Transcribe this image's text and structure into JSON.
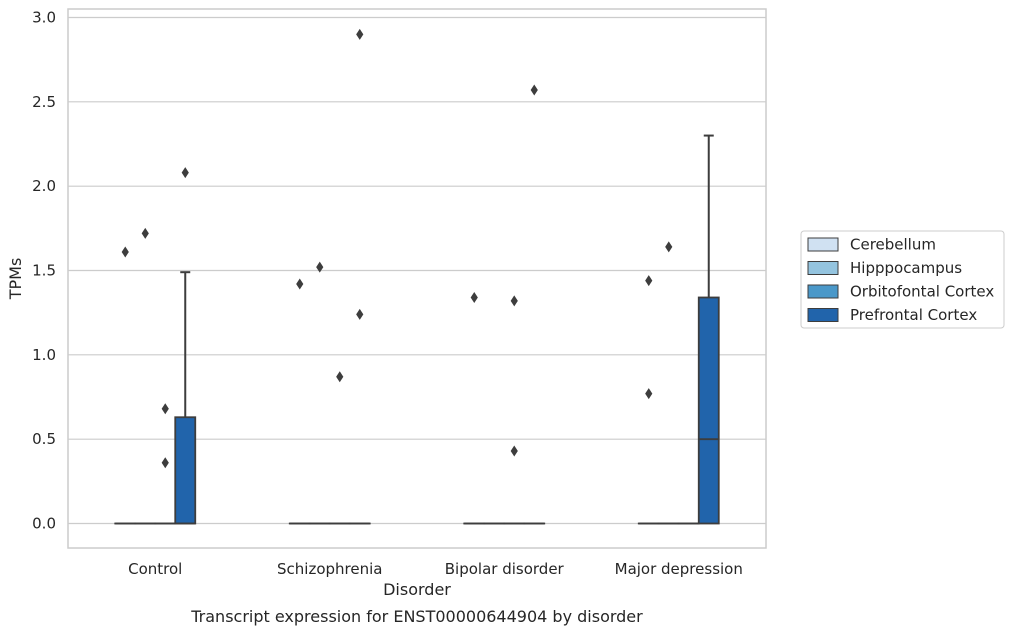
{
  "chart_data": {
    "type": "box",
    "title": "",
    "caption": "Transcript expression for ENST00000644904 by disorder",
    "xlabel": "Disorder",
    "ylabel": "TPMs",
    "ylim": [
      -0.14,
      3.05
    ],
    "yticks": [
      0.0,
      0.5,
      1.0,
      1.5,
      2.0,
      2.5,
      3.0
    ],
    "ytick_labels": [
      "0.0",
      "0.5",
      "1.0",
      "1.5",
      "2.0",
      "2.5",
      "3.0"
    ],
    "grid": "horizontal",
    "legend_position": "right",
    "categories": [
      "Control",
      "Schizophrenia",
      "Bipolar disorder",
      "Major depression"
    ],
    "series": [
      {
        "name": "Cerebellum",
        "color": "#d0e1f2",
        "boxes": [
          {
            "q1": 0,
            "median": 0,
            "q3": 0,
            "whislo": 0,
            "whishi": 0,
            "fliers": [
              1.61
            ]
          },
          {
            "q1": 0,
            "median": 0,
            "q3": 0,
            "whislo": 0,
            "whishi": 0,
            "fliers": [
              1.42
            ]
          },
          {
            "q1": 0,
            "median": 0,
            "q3": 0,
            "whislo": 0,
            "whishi": 0,
            "fliers": [
              1.34
            ]
          },
          {
            "q1": 0,
            "median": 0,
            "q3": 0,
            "whislo": 0,
            "whishi": 0,
            "fliers": [
              1.44,
              0.77
            ]
          }
        ]
      },
      {
        "name": "Hipppocampus",
        "color": "#94c4df",
        "boxes": [
          {
            "q1": 0,
            "median": 0,
            "q3": 0,
            "whislo": 0,
            "whishi": 0,
            "fliers": [
              1.72
            ]
          },
          {
            "q1": 0,
            "median": 0,
            "q3": 0,
            "whislo": 0,
            "whishi": 0,
            "fliers": [
              1.52
            ]
          },
          {
            "q1": 0,
            "median": 0,
            "q3": 0,
            "whislo": 0,
            "whishi": 0,
            "fliers": []
          },
          {
            "q1": 0,
            "median": 0,
            "q3": 0,
            "whislo": 0,
            "whishi": 0,
            "fliers": [
              1.64
            ]
          }
        ]
      },
      {
        "name": "Orbitofontal Cortex",
        "color": "#4a98c9",
        "boxes": [
          {
            "q1": 0,
            "median": 0,
            "q3": 0,
            "whislo": 0,
            "whishi": 0,
            "fliers": [
              0.68,
              0.36
            ]
          },
          {
            "q1": 0,
            "median": 0,
            "q3": 0,
            "whislo": 0,
            "whishi": 0,
            "fliers": [
              0.87
            ]
          },
          {
            "q1": 0,
            "median": 0,
            "q3": 0,
            "whislo": 0,
            "whishi": 0,
            "fliers": [
              1.32,
              0.43
            ]
          },
          {
            "q1": 0,
            "median": 0,
            "q3": 0,
            "whislo": 0,
            "whishi": 0,
            "fliers": []
          }
        ]
      },
      {
        "name": "Prefrontal Cortex",
        "color": "#2164ab",
        "boxes": [
          {
            "q1": 0,
            "median": 0,
            "q3": 0.63,
            "whislo": 0,
            "whishi": 1.49,
            "fliers": [
              2.08
            ]
          },
          {
            "q1": 0,
            "median": 0,
            "q3": 0,
            "whislo": 0,
            "whishi": 0,
            "fliers": [
              2.9,
              1.24
            ]
          },
          {
            "q1": 0,
            "median": 0,
            "q3": 0,
            "whislo": 0,
            "whishi": 0,
            "fliers": [
              2.57
            ]
          },
          {
            "q1": 0,
            "median": 0.5,
            "q3": 1.34,
            "whislo": 0,
            "whishi": 2.3,
            "fliers": []
          }
        ]
      }
    ]
  }
}
